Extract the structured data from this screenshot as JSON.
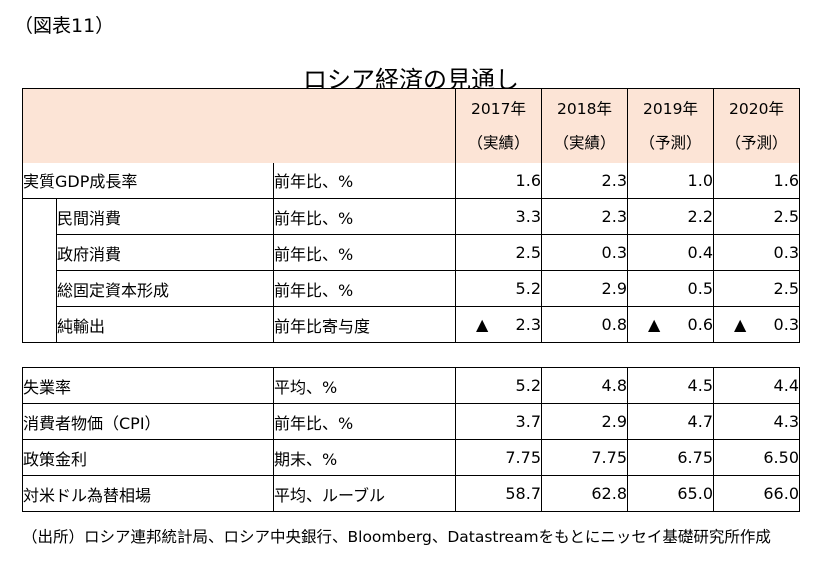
{
  "figure_label": "（図表11）",
  "title": "ロシア経済の見通し",
  "header": {
    "years": [
      {
        "year": "2017年",
        "type": "（実績）"
      },
      {
        "year": "2018年",
        "type": "（実績）"
      },
      {
        "year": "2019年",
        "type": "（予測）"
      },
      {
        "year": "2020年",
        "type": "（予測）"
      }
    ]
  },
  "section1": [
    {
      "name": "実質GDP成長率",
      "unit": "前年比、%",
      "values": [
        "1.6",
        "2.3",
        "1.0",
        "1.6"
      ],
      "negative": [
        false,
        false,
        false,
        false
      ],
      "indent": false
    },
    {
      "name": "民間消費",
      "unit": "前年比、%",
      "values": [
        "3.3",
        "2.3",
        "2.2",
        "2.5"
      ],
      "negative": [
        false,
        false,
        false,
        false
      ],
      "indent": true
    },
    {
      "name": "政府消費",
      "unit": "前年比、%",
      "values": [
        "2.5",
        "0.3",
        "0.4",
        "0.3"
      ],
      "negative": [
        false,
        false,
        false,
        false
      ],
      "indent": true
    },
    {
      "name": "総固定資本形成",
      "unit": "前年比、%",
      "values": [
        "5.2",
        "2.9",
        "0.5",
        "2.5"
      ],
      "negative": [
        false,
        false,
        false,
        false
      ],
      "indent": true
    },
    {
      "name": "純輸出",
      "unit": "前年比寄与度",
      "values": [
        "2.3",
        "0.8",
        "0.6",
        "0.3"
      ],
      "negative": [
        true,
        false,
        true,
        true
      ],
      "indent": true
    }
  ],
  "section2": [
    {
      "name": "失業率",
      "unit": "平均、%",
      "values": [
        "5.2",
        "4.8",
        "4.5",
        "4.4"
      ]
    },
    {
      "name": "消費者物価（CPI）",
      "unit": "前年比、%",
      "values": [
        "3.7",
        "2.9",
        "4.7",
        "4.3"
      ]
    },
    {
      "name": "政策金利",
      "unit": "期末、%",
      "values": [
        "7.75",
        "7.75",
        "6.75",
        "6.50"
      ]
    },
    {
      "name": "対米ドル為替相場",
      "unit": "平均、ルーブル",
      "values": [
        "58.7",
        "62.8",
        "65.0",
        "66.0"
      ]
    }
  ],
  "negative_marker": "▲",
  "source": "（出所）ロシア連邦統計局、ロシア中央銀行、Bloomberg、Datastreamをもとにニッセイ基礎研究所作成"
}
